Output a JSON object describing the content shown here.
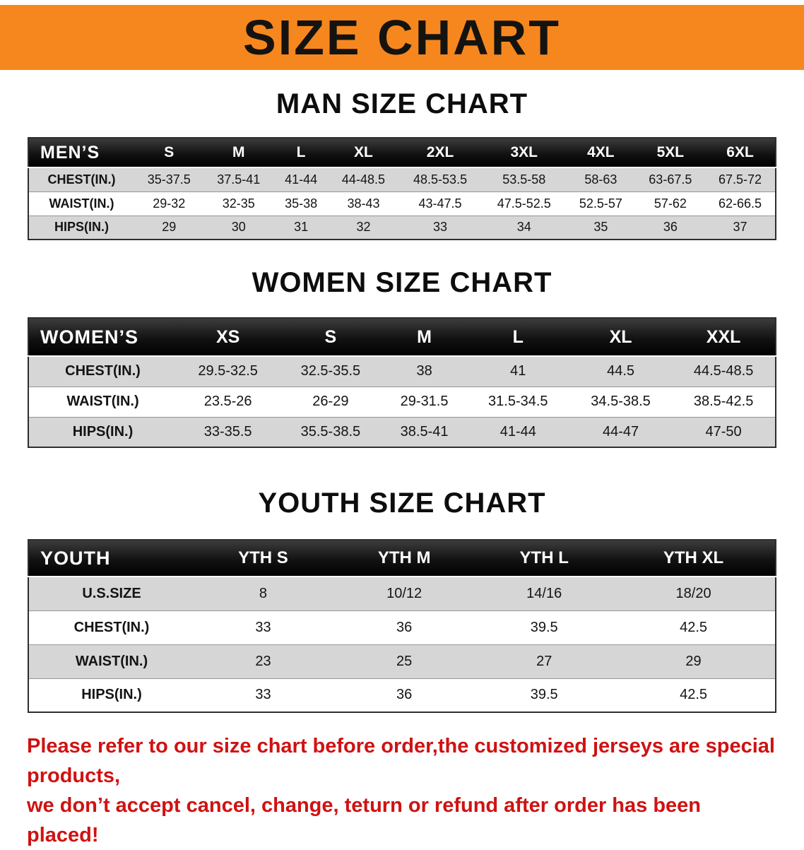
{
  "banner": {
    "title": "SIZE CHART",
    "bg_color": "#f6871f"
  },
  "sections": [
    {
      "heading": "MAN SIZE CHART",
      "table": {
        "header": [
          "MEN’S",
          "S",
          "M",
          "L",
          "XL",
          "2XL",
          "3XL",
          "4XL",
          "5XL",
          "6XL"
        ],
        "rows": [
          [
            "CHEST(IN.)",
            "35-37.5",
            "37.5-41",
            "41-44",
            "44-48.5",
            "48.5-53.5",
            "53.5-58",
            "58-63",
            "63-67.5",
            "67.5-72"
          ],
          [
            "WAIST(IN.)",
            "29-32",
            "32-35",
            "35-38",
            "38-43",
            "43-47.5",
            "47.5-52.5",
            "52.5-57",
            "57-62",
            "62-66.5"
          ],
          [
            "HIPS(IN.)",
            "29",
            "30",
            "31",
            "32",
            "33",
            "34",
            "35",
            "36",
            "37"
          ]
        ]
      }
    },
    {
      "heading": "WOMEN SIZE CHART",
      "table": {
        "header": [
          "WOMEN’S",
          "XS",
          "S",
          "M",
          "L",
          "XL",
          "XXL"
        ],
        "rows": [
          [
            "CHEST(IN.)",
            "29.5-32.5",
            "32.5-35.5",
            "38",
            "41",
            "44.5",
            "44.5-48.5"
          ],
          [
            "WAIST(IN.)",
            "23.5-26",
            "26-29",
            "29-31.5",
            "31.5-34.5",
            "34.5-38.5",
            "38.5-42.5"
          ],
          [
            "HIPS(IN.)",
            "33-35.5",
            "35.5-38.5",
            "38.5-41",
            "41-44",
            "44-47",
            "47-50"
          ]
        ]
      }
    },
    {
      "heading": "YOUTH SIZE CHART",
      "table": {
        "header": [
          "YOUTH",
          "YTH S",
          "YTH M",
          "YTH L",
          "YTH XL"
        ],
        "rows": [
          [
            "U.S.SIZE",
            "8",
            "10/12",
            "14/16",
            "18/20"
          ],
          [
            "CHEST(IN.)",
            "33",
            "36",
            "39.5",
            "42.5"
          ],
          [
            "WAIST(IN.)",
            "23",
            "25",
            "27",
            "29"
          ],
          [
            "HIPS(IN.)",
            "33",
            "36",
            "39.5",
            "42.5"
          ]
        ]
      }
    }
  ],
  "footer": {
    "line1": "Please refer to our size chart before order,the customized jerseys are special products,",
    "line2": "we don’t accept cancel, change, teturn or refund after order has been placed!",
    "color": "#cf1212"
  }
}
